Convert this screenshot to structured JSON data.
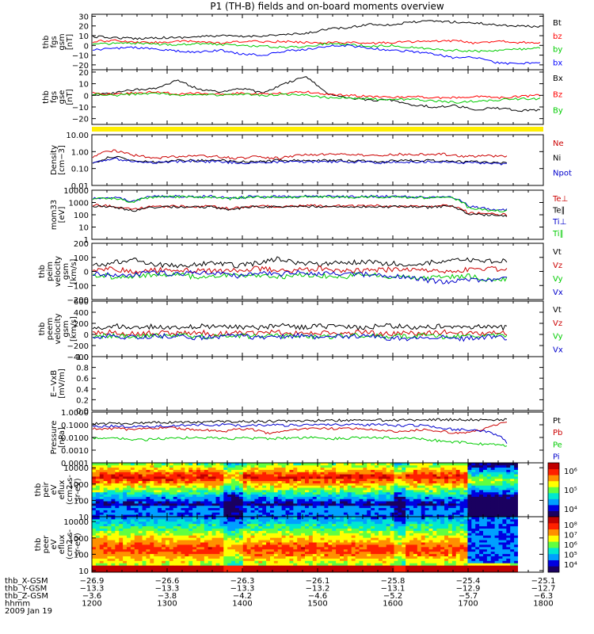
{
  "title": "P1 (TH-B) fields and on-board moments overview",
  "chart_data": [
    {
      "type": "line",
      "ylabel": [
        "thb",
        "fgs",
        "gsm",
        "[nT]"
      ],
      "ylim": [
        -25,
        32
      ],
      "yticks": [
        -20,
        -10,
        0,
        10,
        20,
        30
      ],
      "ytick_labels": [
        "−20",
        "−10",
        "0",
        "10",
        "20",
        "30"
      ],
      "series": [
        {
          "name": "Bt",
          "color": "#000000",
          "values": [
            9,
            8,
            7,
            8,
            8,
            9,
            10,
            9,
            10,
            11,
            12,
            17,
            18,
            22,
            21,
            24,
            25,
            24,
            23,
            21,
            20,
            19
          ]
        },
        {
          "name": "bz",
          "color": "#ff0000",
          "values": [
            4,
            5,
            3,
            3,
            4,
            4,
            2,
            4,
            4,
            4,
            3,
            3,
            3,
            2,
            3,
            4,
            4,
            5,
            2,
            5,
            3,
            3
          ]
        },
        {
          "name": "by",
          "color": "#00cc00",
          "values": [
            1,
            2,
            2,
            1,
            1,
            2,
            1,
            0,
            -1,
            -2,
            -1,
            2,
            1,
            -1,
            0,
            -2,
            -4,
            -5,
            -6,
            -5,
            -4,
            -3
          ]
        },
        {
          "name": "bx",
          "color": "#0000ff",
          "values": [
            -5,
            -3,
            -2,
            -4,
            -6,
            -7,
            -5,
            -9,
            -10,
            -6,
            -4,
            -1,
            0,
            -3,
            -5,
            -6,
            -9,
            -13,
            -12,
            -18,
            -19,
            -17
          ]
        }
      ]
    },
    {
      "type": "line",
      "ylabel": [
        "thb",
        "fgs",
        "gse",
        "[nT]"
      ],
      "ylim": [
        -25,
        22
      ],
      "yticks": [
        -20,
        -10,
        0,
        10,
        20
      ],
      "ytick_labels": [
        "−20",
        "−10",
        "0",
        "10",
        "20"
      ],
      "series": [
        {
          "name": "Bx",
          "color": "#000000",
          "values": [
            0,
            2,
            5,
            6,
            13,
            5,
            3,
            6,
            2,
            10,
            16,
            2,
            -2,
            -4,
            -4,
            -8,
            -10,
            -9,
            -12,
            -11,
            -13,
            -13
          ]
        },
        {
          "name": "Bz",
          "color": "#ff0000",
          "values": [
            2,
            1,
            2,
            3,
            1,
            2,
            1,
            2,
            1,
            2,
            3,
            1,
            0,
            -1,
            -2,
            -1,
            -2,
            -2,
            -1,
            -2,
            -1,
            0
          ]
        },
        {
          "name": "By",
          "color": "#00cc00",
          "values": [
            1,
            0,
            1,
            2,
            0,
            1,
            0,
            1,
            0,
            1,
            0,
            -2,
            -2,
            -3,
            -4,
            -3,
            -5,
            -6,
            -5,
            -4,
            -3,
            -3
          ]
        }
      ]
    },
    {
      "type": "line",
      "ylabel": [
        "Density",
        "[cm−3]"
      ],
      "log": true,
      "ylim": [
        0.01,
        10
      ],
      "yticks": [
        0.01,
        0.1,
        1,
        10
      ],
      "ytick_labels": [
        "0.01",
        "0.10",
        "1.00",
        "10.00"
      ],
      "series": [
        {
          "name": "Ne",
          "color": "#cc0000",
          "values": [
            0.5,
            1.2,
            0.6,
            0.4,
            0.5,
            0.6,
            0.5,
            0.4,
            0.5,
            0.4,
            0.6,
            0.7,
            0.7,
            0.6,
            0.6,
            0.7,
            0.7,
            0.7,
            0.5,
            0.6,
            0.5
          ]
        },
        {
          "name": "Ni",
          "color": "#000000",
          "values": [
            0.2,
            0.5,
            0.3,
            0.25,
            0.3,
            0.3,
            0.3,
            0.25,
            0.25,
            0.3,
            0.3,
            0.3,
            0.3,
            0.28,
            0.25,
            0.3,
            0.3,
            0.28,
            0.25,
            0.25,
            0.2
          ]
        },
        {
          "name": "Npot",
          "color": "#0000cc",
          "values": [
            0.18,
            0.4,
            0.25,
            0.22,
            0.25,
            0.28,
            0.25,
            0.22,
            0.22,
            0.25,
            0.25,
            0.25,
            0.25,
            0.25,
            0.22,
            0.25,
            0.25,
            0.25,
            0.22,
            0.22,
            0.18
          ]
        }
      ]
    },
    {
      "type": "line",
      "ylabel": [
        "mom33",
        "[eV]"
      ],
      "log": true,
      "ylim": [
        1,
        10000
      ],
      "yticks": [
        1,
        10,
        100,
        1000,
        10000
      ],
      "ytick_labels": [
        "1",
        "10",
        "100",
        "1000",
        "10000"
      ],
      "series": [
        {
          "name": "Te⊥",
          "color": "#cc0000",
          "values": [
            600,
            500,
            250,
            450,
            500,
            450,
            500,
            300,
            500,
            480,
            500,
            550,
            500,
            520,
            550,
            500,
            520,
            450,
            600,
            150,
            120,
            100
          ]
        },
        {
          "name": "Te∥",
          "color": "#000000",
          "values": [
            500,
            450,
            200,
            400,
            450,
            400,
            450,
            250,
            450,
            420,
            450,
            480,
            450,
            470,
            480,
            450,
            470,
            400,
            500,
            120,
            100,
            80
          ]
        },
        {
          "name": "Ti⊥",
          "color": "#0000cc",
          "values": [
            2000,
            2500,
            1200,
            3000,
            3200,
            3000,
            3100,
            2200,
            3000,
            3100,
            3000,
            3200,
            3100,
            3000,
            3200,
            3100,
            3000,
            2600,
            3500,
            500,
            300,
            250
          ]
        },
        {
          "name": "Ti∥",
          "color": "#00cc00",
          "values": [
            1800,
            2200,
            1000,
            2700,
            2900,
            2700,
            2800,
            2000,
            2700,
            2800,
            2700,
            2900,
            2800,
            2700,
            2900,
            2800,
            2700,
            2300,
            3000,
            400,
            250,
            200
          ]
        }
      ]
    },
    {
      "type": "line",
      "ylabel": [
        "thb",
        "peim",
        "velocity",
        "gsm",
        "[km/s]"
      ],
      "ylim": [
        -200,
        200
      ],
      "yticks": [
        -200,
        -100,
        0,
        100,
        200
      ],
      "ytick_labels": [
        "−200",
        "−100",
        "0",
        "100",
        "200"
      ],
      "series": [
        {
          "name": "Vt",
          "color": "#000000",
          "values": [
            40,
            60,
            90,
            50,
            40,
            50,
            60,
            40,
            60,
            90,
            60,
            50,
            60,
            70,
            60,
            50,
            60,
            70,
            80,
            70,
            80
          ]
        },
        {
          "name": "Vz",
          "color": "#cc0000",
          "values": [
            10,
            20,
            0,
            10,
            5,
            10,
            0,
            10,
            20,
            5,
            10,
            20,
            10,
            5,
            10,
            20,
            10,
            0,
            10,
            20,
            15
          ]
        },
        {
          "name": "Vy",
          "color": "#00cc00",
          "values": [
            -20,
            -40,
            -30,
            -30,
            -20,
            -40,
            -30,
            -20,
            -30,
            -40,
            -20,
            -30,
            -40,
            -20,
            -30,
            -40,
            -50,
            -40,
            -30,
            -60,
            -50
          ]
        },
        {
          "name": "Vx",
          "color": "#0000cc",
          "values": [
            -10,
            -30,
            -20,
            -10,
            -20,
            -10,
            -20,
            -30,
            -10,
            -20,
            -10,
            -20,
            -10,
            -20,
            -30,
            -40,
            -60,
            -80,
            -60,
            -70,
            -40
          ]
        }
      ]
    },
    {
      "type": "line",
      "ylabel": [
        "thb",
        "peem",
        "velocity",
        "gsm",
        "[km/s]"
      ],
      "ylim": [
        -400,
        600
      ],
      "yticks": [
        -400,
        -200,
        0,
        200,
        400,
        600
      ],
      "ytick_labels": [
        "−400",
        "−200",
        "0",
        "200",
        "400",
        "600"
      ],
      "series": [
        {
          "name": "Vt",
          "color": "#000000",
          "values": [
            120,
            150,
            130,
            140,
            120,
            150,
            130,
            140,
            120,
            160,
            130,
            150,
            140,
            120,
            160,
            140,
            130,
            150,
            140,
            130,
            120
          ]
        },
        {
          "name": "Vz",
          "color": "#cc0000",
          "values": [
            20,
            40,
            10,
            30,
            20,
            40,
            10,
            30,
            20,
            40,
            10,
            30,
            20,
            40,
            10,
            30,
            20,
            40,
            10,
            30,
            20
          ]
        },
        {
          "name": "Vy",
          "color": "#00cc00",
          "values": [
            -30,
            -20,
            -40,
            -30,
            -20,
            -40,
            -30,
            -20,
            -40,
            -30,
            -20,
            -40,
            -30,
            -20,
            -40,
            -30,
            -20,
            -40,
            -30,
            -20,
            -30
          ]
        },
        {
          "name": "Vx",
          "color": "#0000cc",
          "values": [
            -40,
            -20,
            -60,
            -40,
            -20,
            -60,
            -40,
            -20,
            -60,
            -40,
            -20,
            -60,
            -40,
            -20,
            -60,
            -80,
            -40,
            -60,
            -80,
            -40,
            -60
          ]
        }
      ]
    },
    {
      "type": "line",
      "ylabel": [
        "E−VxB",
        "[mV/m]"
      ],
      "ylim": [
        0,
        1
      ],
      "yticks": [
        0,
        0.2,
        0.4,
        0.6,
        0.8,
        1.0
      ],
      "ytick_labels": [
        "0.0",
        "0.2",
        "0.4",
        "0.6",
        "0.8",
        "1.0"
      ],
      "series": [
        {
          "name": "Ez",
          "color": "#cc0000",
          "values": []
        },
        {
          "name": "Ey",
          "color": "#00cc00",
          "values": []
        },
        {
          "name": "Ex",
          "color": "#0000cc",
          "values": []
        }
      ]
    },
    {
      "type": "line",
      "ylabel": [
        "Pressure",
        "[nPa]"
      ],
      "log": true,
      "ylim": [
        0.0001,
        1
      ],
      "yticks": [
        0.0001,
        0.001,
        0.01,
        0.1,
        1
      ],
      "ytick_labels": [
        "0.0001",
        "0.0010",
        "0.0100",
        "0.1000",
        "1.0000"
      ],
      "series": [
        {
          "name": "Pt",
          "color": "#000000",
          "values": [
            0.12,
            0.13,
            0.14,
            0.15,
            0.16,
            0.17,
            0.18,
            0.18,
            0.19,
            0.2,
            0.21,
            0.22,
            0.22,
            0.23,
            0.24,
            0.24,
            0.25,
            0.25,
            0.25,
            0.25
          ]
        },
        {
          "name": "Pb",
          "color": "#cc0000",
          "values": [
            0.05,
            0.05,
            0.04,
            0.06,
            0.05,
            0.04,
            0.03,
            0.05,
            0.02,
            0.04,
            0.05,
            0.05,
            0.05,
            0.04,
            0.03,
            0.04,
            0.03,
            0.02,
            0.05,
            0.15
          ]
        },
        {
          "name": "Pe",
          "color": "#00cc00",
          "values": [
            0.008,
            0.01,
            0.006,
            0.008,
            0.009,
            0.01,
            0.008,
            0.009,
            0.008,
            0.009,
            0.01,
            0.008,
            0.009,
            0.01,
            0.009,
            0.008,
            0.005,
            0.004,
            0.003,
            0.002
          ]
        },
        {
          "name": "Pi",
          "color": "#0000cc",
          "values": [
            0.07,
            0.08,
            0.07,
            0.08,
            0.09,
            0.1,
            0.1,
            0.08,
            0.1,
            0.09,
            0.1,
            0.11,
            0.1,
            0.1,
            0.09,
            0.09,
            0.05,
            0.04,
            0.03,
            0.004
          ]
        }
      ]
    },
    {
      "type": "heatmap",
      "ylabel": [
        "thb",
        "peir",
        "eV",
        "eflux",
        "(cm2-s-",
        "sr-eV)"
      ],
      "log": true,
      "ylim": [
        10,
        20000
      ],
      "yticks": [
        10,
        100,
        1000,
        10000
      ],
      "ytick_labels": [
        "10",
        "100",
        "1000",
        "10000"
      ],
      "colorbar_ticks": [
        "10⁴",
        "10⁵",
        "10⁶"
      ]
    },
    {
      "type": "heatmap",
      "ylabel": [
        "thb",
        "peer",
        "eV",
        "eflux",
        "(cm2-s-",
        "sr-eV)"
      ],
      "log": true,
      "ylim": [
        8,
        20000
      ],
      "yticks": [
        10,
        100,
        1000,
        10000
      ],
      "ytick_labels": [
        "10",
        "100",
        "1000",
        "10000"
      ],
      "colorbar_ticks": [
        "10⁴",
        "10⁵",
        "10⁶",
        "10⁷",
        "10⁸"
      ]
    }
  ],
  "footer": {
    "row_labels": [
      "thb_X-GSM",
      "thb_Y-GSM",
      "thb_Z-GSM",
      "hhmm",
      "2009 Jan 19"
    ],
    "columns": [
      [
        "−26.9",
        "−13.3",
        "−3.6",
        "1200"
      ],
      [
        "−26.6",
        "−13.3",
        "−3.8",
        "1300"
      ],
      [
        "−26.3",
        "−13.3",
        "−4.2",
        "1400"
      ],
      [
        "−26.1",
        "−13.2",
        "−4.6",
        "1500"
      ],
      [
        "−25.8",
        "−13.1",
        "−5.2",
        "1600"
      ],
      [
        "−25.4",
        "−12.9",
        "−5.7",
        "1700"
      ],
      [
        "−25.1",
        "−12.7",
        "−6.3",
        "1800"
      ]
    ]
  }
}
